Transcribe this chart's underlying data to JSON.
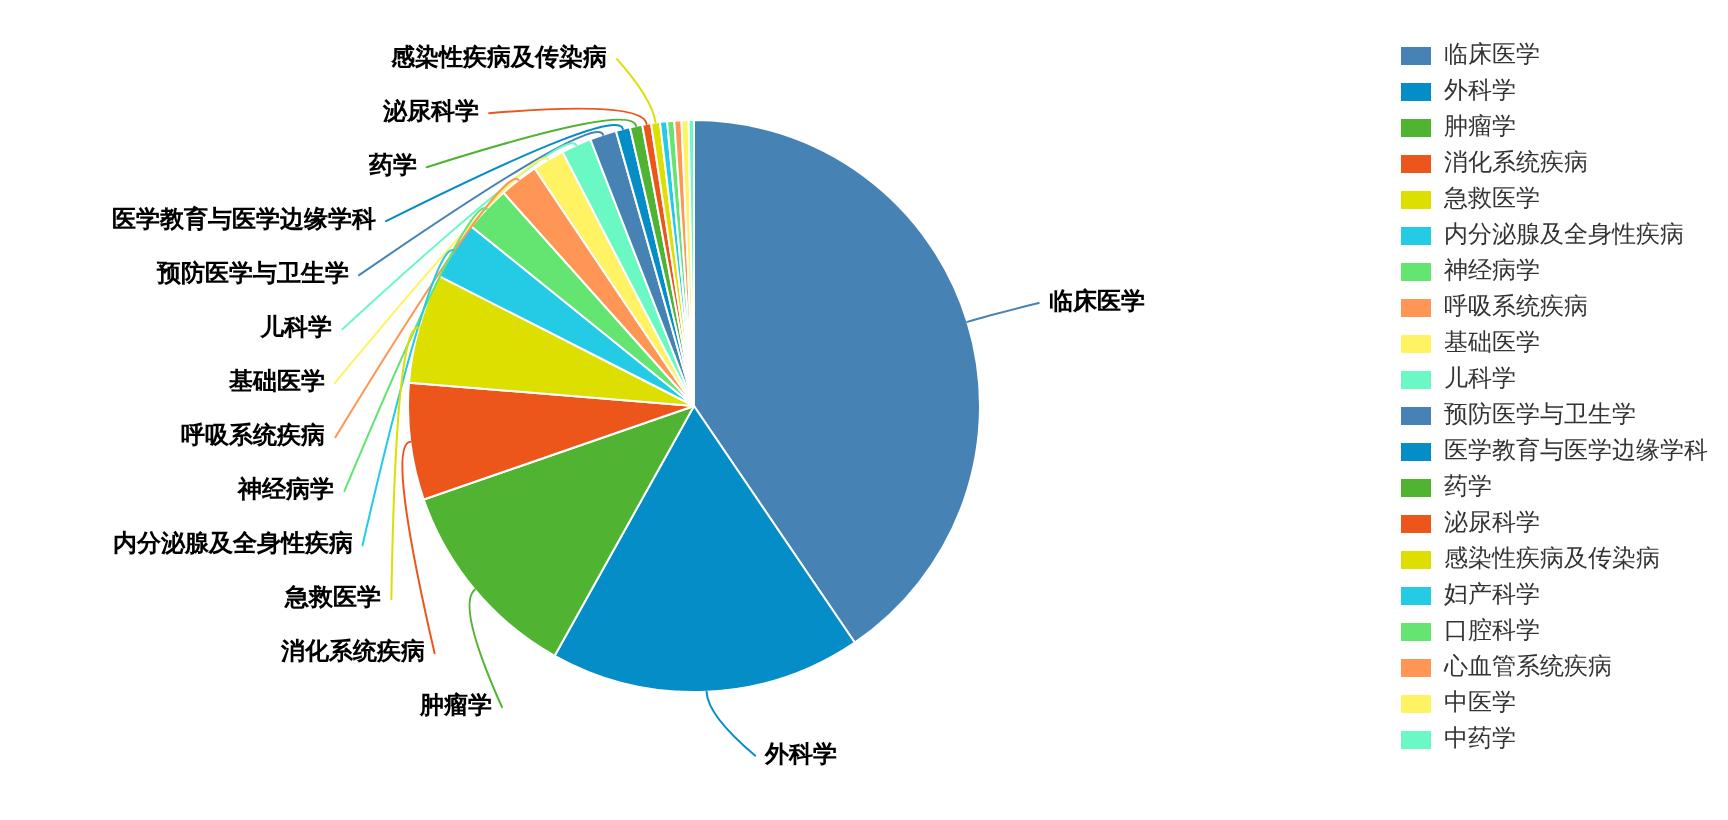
{
  "chart_data": {
    "type": "pie",
    "categories": [
      "临床医学",
      "外科学",
      "肿瘤学",
      "消化系统疾病",
      "急救医学",
      "内分泌腺及全身性疾病",
      "神经病学",
      "呼吸系统疾病",
      "基础医学",
      "儿科学",
      "预防医学与卫生学",
      "医学教育与医学边缘学科",
      "药学",
      "泌尿科学",
      "感染性疾病及传染病",
      "妇产科学",
      "口腔科学",
      "心血管系统疾病",
      "中医学",
      "中药学"
    ],
    "values": [
      40.5,
      17.6,
      11.6,
      6.6,
      6.2,
      3.3,
      2.6,
      2.2,
      1.8,
      1.7,
      1.5,
      0.8,
      0.7,
      0.5,
      0.5,
      0.4,
      0.4,
      0.4,
      0.4,
      0.3
    ],
    "colors": [
      "#4682b4",
      "#058dc7",
      "#50b432",
      "#ed561b",
      "#dddf00",
      "#24cbe5",
      "#64e572",
      "#ff9655",
      "#fff263",
      "#6af9c4",
      "#4682b4",
      "#058dc7",
      "#50b432",
      "#ed561b",
      "#dddf00",
      "#24cbe5",
      "#64e572",
      "#ff9655",
      "#fff263",
      "#6af9c4"
    ],
    "legend": "right"
  }
}
